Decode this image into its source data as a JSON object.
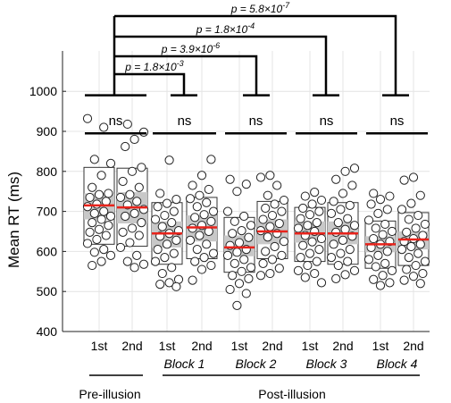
{
  "chart_data": {
    "type": "boxplot-scatter",
    "ylabel": "Mean RT (ms)",
    "ylim": [
      400,
      1000
    ],
    "yticks": [
      400,
      500,
      600,
      700,
      800,
      900,
      1000
    ],
    "grid": true,
    "categories": [
      "1st",
      "2nd",
      "1st",
      "2nd",
      "1st",
      "2nd",
      "1st",
      "2nd",
      "1st",
      "2nd"
    ],
    "block_labels": [
      "Block 1",
      "Block 2",
      "Block 3",
      "Block 4"
    ],
    "group_labels": {
      "pre": "Pre-illusion",
      "post": "Post-illusion"
    },
    "ns_label": "ns",
    "summary": [
      {
        "median": 715,
        "iqr": [
          680,
          745
        ],
        "range": [
          618,
          810
        ]
      },
      {
        "median": 710,
        "iqr": [
          670,
          748
        ],
        "range": [
          613,
          808
        ]
      },
      {
        "median": 645,
        "iqr": [
          610,
          675
        ],
        "range": [
          568,
          722
        ]
      },
      {
        "median": 660,
        "iqr": [
          625,
          690
        ],
        "range": [
          582,
          735
        ]
      },
      {
        "median": 610,
        "iqr": [
          588,
          640
        ],
        "range": [
          548,
          685
        ]
      },
      {
        "median": 650,
        "iqr": [
          618,
          680
        ],
        "range": [
          582,
          725
        ]
      },
      {
        "median": 645,
        "iqr": [
          622,
          675
        ],
        "range": [
          575,
          710
        ]
      },
      {
        "median": 645,
        "iqr": [
          618,
          675
        ],
        "range": [
          568,
          722
        ]
      },
      {
        "median": 618,
        "iqr": [
          598,
          638
        ],
        "range": [
          558,
          676
        ]
      },
      {
        "median": 630,
        "iqr": [
          605,
          650
        ],
        "range": [
          565,
          697
        ]
      }
    ],
    "points": [
      [
        932,
        910,
        830,
        820,
        790,
        760,
        745,
        742,
        735,
        725,
        718,
        712,
        700,
        695,
        688,
        680,
        672,
        665,
        655,
        648,
        640,
        630,
        620,
        605,
        598,
        590,
        575,
        565
      ],
      [
        918,
        898,
        880,
        862,
        810,
        800,
        775,
        760,
        742,
        735,
        725,
        716,
        705,
        695,
        688,
        672,
        658,
        648,
        640,
        622,
        610,
        590,
        575,
        568,
        560
      ],
      [
        828,
        745,
        730,
        720,
        712,
        700,
        690,
        680,
        672,
        662,
        652,
        645,
        638,
        628,
        618,
        605,
        595,
        585,
        575,
        560,
        545,
        530,
        522,
        518,
        512
      ],
      [
        830,
        790,
        765,
        755,
        740,
        732,
        722,
        712,
        700,
        692,
        685,
        675,
        665,
        658,
        650,
        640,
        628,
        618,
        605,
        595,
        585,
        575,
        565,
        555,
        528
      ],
      [
        780,
        768,
        750,
        700,
        688,
        675,
        665,
        652,
        645,
        635,
        622,
        615,
        605,
        598,
        590,
        580,
        570,
        560,
        550,
        540,
        532,
        520,
        505,
        495,
        465
      ],
      [
        790,
        785,
        765,
        740,
        728,
        718,
        708,
        700,
        690,
        680,
        670,
        662,
        652,
        645,
        636,
        625,
        612,
        600,
        590,
        580,
        570,
        558,
        545,
        540
      ],
      [
        748,
        738,
        728,
        718,
        708,
        700,
        692,
        682,
        672,
        665,
        658,
        650,
        640,
        632,
        624,
        615,
        605,
        595,
        585,
        575,
        565,
        552,
        545,
        535,
        522
      ],
      [
        808,
        800,
        780,
        765,
        745,
        725,
        715,
        705,
        695,
        682,
        672,
        665,
        655,
        648,
        638,
        628,
        618,
        605,
        595,
        585,
        575,
        565,
        552,
        542,
        532
      ],
      [
        745,
        738,
        730,
        718,
        705,
        695,
        678,
        668,
        658,
        650,
        642,
        632,
        625,
        618,
        610,
        600,
        590,
        580,
        570,
        562,
        552,
        540,
        530,
        522,
        515
      ],
      [
        785,
        778,
        740,
        720,
        705,
        690,
        680,
        668,
        658,
        648,
        640,
        632,
        625,
        618,
        612,
        605,
        595,
        585,
        575,
        565,
        555,
        545,
        538,
        528,
        520
      ]
    ],
    "significance": [
      {
        "label": "p = 1.8×10",
        "exp": "-3",
        "from": 0,
        "to": 2
      },
      {
        "label": "p = 3.9×10",
        "exp": "-6",
        "from": 0,
        "to": 4
      },
      {
        "label": "p = 1.8×10",
        "exp": "-4",
        "from": 0,
        "to": 6
      },
      {
        "label": "p = 5.8×10",
        "exp": "-7",
        "from": 0,
        "to": 8
      }
    ],
    "colors": {
      "median": "#e8231b",
      "iqr": "#c8c8c8",
      "box_edge": "#333333",
      "point_fill": "#ffffff",
      "point_edge": "#222222",
      "grid": "#e4e4e4"
    }
  }
}
